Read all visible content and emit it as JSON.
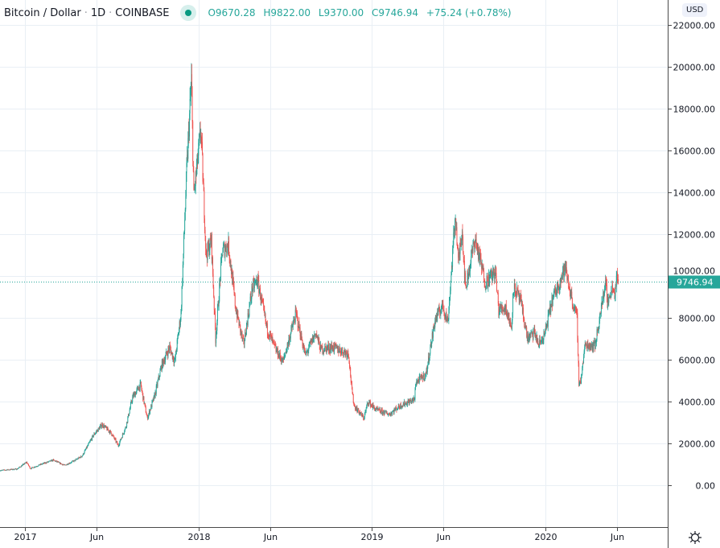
{
  "header": {
    "symbol": "Bitcoin / Dollar",
    "interval": "1D",
    "exchange": "COINBASE",
    "sep": "·",
    "open": "O9670.28",
    "high": "H9822.00",
    "low": "L9370.00",
    "close": "C9746.94",
    "change": "+75.24 (+0.78%)"
  },
  "currency": "USD",
  "icons": {
    "status": "market-status-dot-icon",
    "settings": "gear-icon"
  },
  "colors": {
    "up": "#26a69a",
    "down": "#ef5350",
    "grid": "#e9eff5",
    "axis": "#4a4a4a",
    "last_price": "#26a69a"
  },
  "chart_data": {
    "type": "candlestick",
    "title": "Bitcoin / Dollar · 1D · COINBASE",
    "ylim": [
      -2000,
      23200
    ],
    "xlim": [
      "2016-11-09",
      "2020-09-15"
    ],
    "y_ticks": [
      "0.00",
      "2000.00",
      "4000.00",
      "6000.00",
      "8000.00",
      "10000.00",
      "12000.00",
      "14000.00",
      "16000.00",
      "18000.00",
      "20000.00",
      "22000.00"
    ],
    "x_ticks": [
      {
        "label": "2017",
        "date": "2017-01-01"
      },
      {
        "label": "Jun",
        "date": "2017-06-01"
      },
      {
        "label": "2018",
        "date": "2018-01-01"
      },
      {
        "label": "Jun",
        "date": "2018-06-01"
      },
      {
        "label": "2019",
        "date": "2019-01-01"
      },
      {
        "label": "Jun",
        "date": "2019-06-01"
      },
      {
        "label": "2020",
        "date": "2020-01-01"
      },
      {
        "label": "Jun",
        "date": "2020-06-01"
      }
    ],
    "grid": true,
    "last_price": 9746.94,
    "last_price_label": "9746.94",
    "approx_close_path": [
      [
        "2016-11-09",
        710
      ],
      [
        "2016-12-15",
        780
      ],
      [
        "2017-01-04",
        1100
      ],
      [
        "2017-01-12",
        800
      ],
      [
        "2017-02-01",
        980
      ],
      [
        "2017-03-01",
        1200
      ],
      [
        "2017-03-25",
        950
      ],
      [
        "2017-04-15",
        1180
      ],
      [
        "2017-05-01",
        1400
      ],
      [
        "2017-05-25",
        2400
      ],
      [
        "2017-06-12",
        2900
      ],
      [
        "2017-07-01",
        2500
      ],
      [
        "2017-07-16",
        1900
      ],
      [
        "2017-08-01",
        2800
      ],
      [
        "2017-08-15",
        4200
      ],
      [
        "2017-09-01",
        4800
      ],
      [
        "2017-09-15",
        3200
      ],
      [
        "2017-10-01",
        4300
      ],
      [
        "2017-10-15",
        5700
      ],
      [
        "2017-11-01",
        6600
      ],
      [
        "2017-11-12",
        5900
      ],
      [
        "2017-11-25",
        8200
      ],
      [
        "2017-12-07",
        15000
      ],
      [
        "2017-12-17",
        19400
      ],
      [
        "2017-12-22",
        13800
      ],
      [
        "2018-01-06",
        17000
      ],
      [
        "2018-01-17",
        11000
      ],
      [
        "2018-01-28",
        11700
      ],
      [
        "2018-02-06",
        7000
      ],
      [
        "2018-02-20",
        11200
      ],
      [
        "2018-03-05",
        11500
      ],
      [
        "2018-03-20",
        8500
      ],
      [
        "2018-04-06",
        6700
      ],
      [
        "2018-04-24",
        9400
      ],
      [
        "2018-05-05",
        9800
      ],
      [
        "2018-05-25",
        7500
      ],
      [
        "2018-06-12",
        6500
      ],
      [
        "2018-06-28",
        5900
      ],
      [
        "2018-07-25",
        8200
      ],
      [
        "2018-08-14",
        6200
      ],
      [
        "2018-09-05",
        7300
      ],
      [
        "2018-09-15",
        6500
      ],
      [
        "2018-10-10",
        6600
      ],
      [
        "2018-11-13",
        6300
      ],
      [
        "2018-11-20",
        4500
      ],
      [
        "2018-11-25",
        3800
      ],
      [
        "2018-12-15",
        3200
      ],
      [
        "2018-12-24",
        4000
      ],
      [
        "2019-01-10",
        3600
      ],
      [
        "2019-02-07",
        3400
      ],
      [
        "2019-03-01",
        3800
      ],
      [
        "2019-04-01",
        4100
      ],
      [
        "2019-04-03",
        4900
      ],
      [
        "2019-04-25",
        5300
      ],
      [
        "2019-05-14",
        7900
      ],
      [
        "2019-05-30",
        8600
      ],
      [
        "2019-06-10",
        7800
      ],
      [
        "2019-06-26",
        13000
      ],
      [
        "2019-07-02",
        10600
      ],
      [
        "2019-07-10",
        12300
      ],
      [
        "2019-07-17",
        9400
      ],
      [
        "2019-08-06",
        11800
      ],
      [
        "2019-08-28",
        9700
      ],
      [
        "2019-09-18",
        10200
      ],
      [
        "2019-09-25",
        8400
      ],
      [
        "2019-10-10",
        8500
      ],
      [
        "2019-10-22",
        7500
      ],
      [
        "2019-10-26",
        9500
      ],
      [
        "2019-11-10",
        8800
      ],
      [
        "2019-11-25",
        7000
      ],
      [
        "2019-12-10",
        7300
      ],
      [
        "2019-12-18",
        6700
      ],
      [
        "2019-12-31",
        7200
      ],
      [
        "2020-01-15",
        8800
      ],
      [
        "2020-02-12",
        10400
      ],
      [
        "2020-02-28",
        8700
      ],
      [
        "2020-03-08",
        8000
      ],
      [
        "2020-03-12",
        4900
      ],
      [
        "2020-03-16",
        5000
      ],
      [
        "2020-03-25",
        6700
      ],
      [
        "2020-04-15",
        6700
      ],
      [
        "2020-04-30",
        8700
      ],
      [
        "2020-05-08",
        9900
      ],
      [
        "2020-05-11",
        8600
      ],
      [
        "2020-05-20",
        9500
      ],
      [
        "2020-05-27",
        9200
      ],
      [
        "2020-06-01",
        10200
      ],
      [
        "2020-06-02",
        9500
      ],
      [
        "2020-06-03",
        9746.94
      ]
    ]
  }
}
